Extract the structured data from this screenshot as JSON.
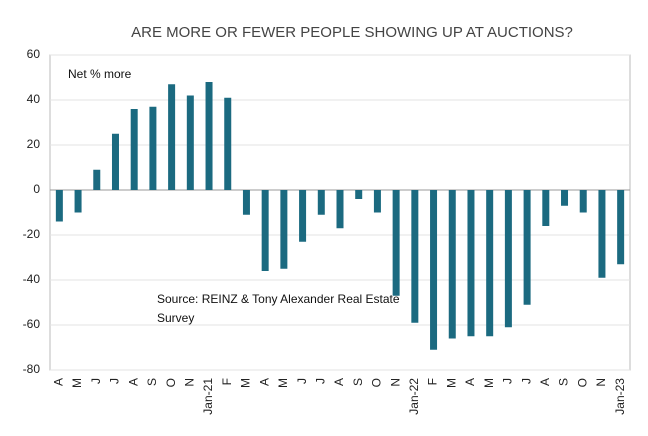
{
  "chart_data": {
    "type": "bar",
    "title": "ARE MORE OR FEWER PEOPLE SHOWING UP AT AUCTIONS?",
    "y_label": "Net % more",
    "source": "Source: REINZ & Tony Alexander Real Estate Survey",
    "categories": [
      "A",
      "M",
      "J",
      "J",
      "A",
      "S",
      "O",
      "N",
      "Jan-21",
      "F",
      "M",
      "A",
      "M",
      "J",
      "J",
      "A",
      "S",
      "O",
      "N",
      "Jan-22",
      "F",
      "M",
      "A",
      "M",
      "J",
      "J",
      "A",
      "S",
      "O",
      "N",
      "Jan-23"
    ],
    "values": [
      -14,
      -10,
      9,
      25,
      36,
      37,
      47,
      42,
      48,
      41,
      -11,
      -36,
      -35,
      -23,
      -11,
      -17,
      -4,
      -10,
      -47,
      -59,
      -71,
      -66,
      -65,
      -65,
      -61,
      -51,
      -16,
      -7,
      -10,
      -39,
      -33
    ],
    "color": "#1b6a80",
    "ylim": [
      -80,
      60
    ],
    "yticks": [
      -80,
      -60,
      -40,
      -20,
      0,
      20,
      40,
      60
    ],
    "grid": true
  }
}
